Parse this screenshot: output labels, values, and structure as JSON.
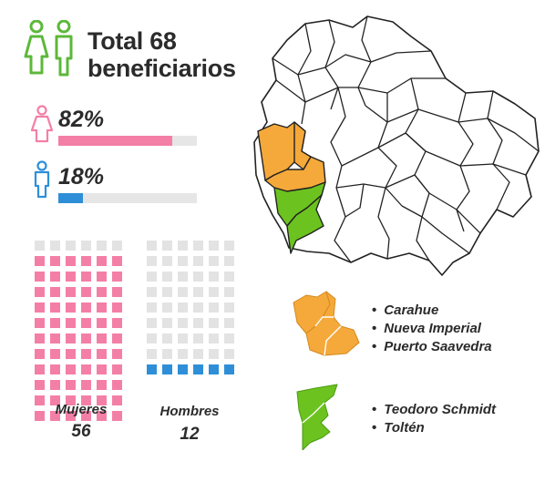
{
  "header": {
    "title_line1": "Total 68",
    "title_line2": "beneficiarios"
  },
  "icons": {
    "header": "women-and-man-icon",
    "female": "woman-icon",
    "male": "man-icon"
  },
  "colors": {
    "female": "#f47fa6",
    "male": "#2e8fd8",
    "outline_green": "#5cb83a",
    "zone_orange": "#f5a93a",
    "zone_green": "#6cc31f",
    "bar_track": "#e6e6e6",
    "cell_empty": "#e3e3e3"
  },
  "stats": {
    "female": {
      "percent_label": "82%",
      "fraction": 0.82
    },
    "male": {
      "percent_label": "18%",
      "fraction": 0.18
    }
  },
  "groups": {
    "women": {
      "label": "Mujeres",
      "count": "56",
      "filled_rows": 11,
      "total_rows": 12
    },
    "men": {
      "label": "Hombres",
      "count": "12",
      "filled_rows": 1,
      "total_rows": 9
    }
  },
  "legend": {
    "orange_zone": [
      "Carahue",
      "Nueva Imperial",
      "Puerto Saavedra"
    ],
    "green_zone": [
      "Teodoro Schmidt",
      "Toltén"
    ]
  }
}
